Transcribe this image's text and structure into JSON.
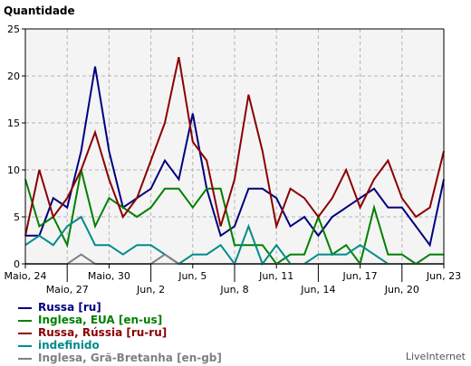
{
  "chart_data": {
    "type": "line",
    "ylabel": "Quantidade",
    "ylim": [
      0,
      25
    ],
    "yticks": [
      "0",
      "5",
      "10",
      "15",
      "20",
      "25"
    ],
    "grid": true,
    "n_points": 31,
    "xtick_labels": [
      {
        "index": 0,
        "label": "Maio, 24",
        "row": 1
      },
      {
        "index": 3,
        "label": "Maio, 27",
        "row": 2
      },
      {
        "index": 6,
        "label": "Maio, 30",
        "row": 1
      },
      {
        "index": 9,
        "label": "Jun, 2",
        "row": 2
      },
      {
        "index": 12,
        "label": "Jun, 5",
        "row": 1
      },
      {
        "index": 15,
        "label": "Jun, 8",
        "row": 2
      },
      {
        "index": 18,
        "label": "Jun, 11",
        "row": 1
      },
      {
        "index": 21,
        "label": "Jun, 14",
        "row": 2
      },
      {
        "index": 24,
        "label": "Jun, 17",
        "row": 1
      },
      {
        "index": 27,
        "label": "Jun, 20",
        "row": 2
      },
      {
        "index": 30,
        "label": "Jun, 23",
        "row": 1
      }
    ],
    "series": [
      {
        "name": "Russa [ru]",
        "color": "#000080",
        "values": [
          3,
          3,
          7,
          6,
          12,
          21,
          12,
          6,
          7,
          8,
          11,
          9,
          16,
          8,
          3,
          4,
          8,
          8,
          7,
          4,
          5,
          3,
          5,
          6,
          7,
          8,
          6,
          6,
          4,
          2,
          9
        ]
      },
      {
        "name": "Inglesa, EUA [en-us]",
        "color": "#008000",
        "values": [
          9,
          4,
          5,
          2,
          10,
          4,
          7,
          6,
          5,
          6,
          8,
          8,
          6,
          8,
          8,
          2,
          2,
          2,
          0,
          1,
          1,
          5,
          1,
          2,
          0,
          6,
          1,
          1,
          0,
          1,
          1
        ]
      },
      {
        "name": "Russa, Rússia [ru-ru]",
        "color": "#8b0000",
        "values": [
          3,
          10,
          5,
          7,
          10,
          14,
          9,
          5,
          7,
          11,
          15,
          22,
          13,
          11,
          4,
          9,
          18,
          12,
          4,
          8,
          7,
          5,
          7,
          10,
          6,
          9,
          11,
          7,
          5,
          6,
          12
        ]
      },
      {
        "name": "indefinido",
        "color": "#008b8b",
        "values": [
          2,
          3,
          2,
          4,
          5,
          2,
          2,
          1,
          2,
          2,
          1,
          0,
          1,
          1,
          2,
          0,
          4,
          0,
          2,
          0,
          0,
          1,
          1,
          1,
          2,
          1,
          0,
          0,
          0,
          0,
          0
        ]
      },
      {
        "name": "Inglesa, Grã-Bretanha [en-gb]",
        "color": "#808080",
        "values": [
          0,
          0,
          0,
          0,
          1,
          0,
          0,
          0,
          0,
          0,
          1,
          0,
          0,
          0,
          0,
          0,
          0,
          0,
          0,
          0,
          0,
          0,
          0,
          0,
          0,
          0,
          0,
          0,
          0,
          0,
          0
        ]
      }
    ]
  },
  "colors": {
    "plot_background": "#f4f4f4",
    "grid": "#b4b4b4",
    "axis": "#000000"
  },
  "credit": "LiveInternet"
}
